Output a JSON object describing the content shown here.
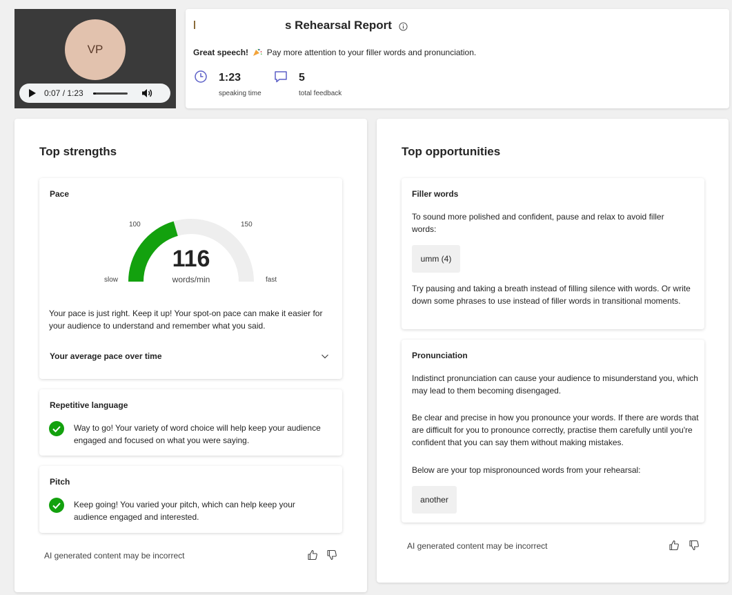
{
  "video": {
    "avatar_initials": "VP",
    "time": "0:07 / 1:23",
    "progress_fraction": 0.085
  },
  "header": {
    "title": "s Rehearsal Report",
    "summary_bold": "Great speech!",
    "summary_rest": "Pay more attention to your filler words and pronunciation.",
    "stats": [
      {
        "icon": "clock-icon",
        "value": "1:23",
        "label": "speaking time"
      },
      {
        "icon": "comment-icon",
        "value": "5",
        "label": "total feedback"
      }
    ]
  },
  "strengths": {
    "title": "Top strengths",
    "pace": {
      "title": "Pace",
      "value": 116,
      "unit": "words/min",
      "range_low": "100",
      "range_high": "150",
      "slow_label": "slow",
      "fast_label": "fast",
      "description": "Your pace is just right. Keep it up! Your spot-on pace can make it easier for your audience to understand and remember what you said.",
      "expander_label": "Your average pace over time",
      "colors": {
        "fill": "#13a10e",
        "track": "#eeeeee"
      }
    },
    "repetitive": {
      "title": "Repetitive language",
      "text": "Way to go! Your variety of word choice will help keep your audience engaged and focused on what you were saying."
    },
    "pitch": {
      "title": "Pitch",
      "text": "Keep going! You varied your pitch, which can help keep your audience engaged and interested."
    },
    "footer": "AI generated content may be incorrect"
  },
  "opportunities": {
    "title": "Top opportunities",
    "filler": {
      "title": "Filler words",
      "intro": "To sound more polished and confident, pause and relax to avoid filler words:",
      "chip": "umm (4)",
      "tip": "Try pausing and taking a breath instead of filling silence with words. Or write down some phrases to use instead of filler words in transitional moments."
    },
    "pronunciation": {
      "title": "Pronunciation",
      "p1": "Indistinct pronunciation can cause your audience to misunderstand you, which may lead to them becoming disengaged.",
      "p2": "Be clear and precise in how you pronounce your words. If there are words that are difficult for you to pronounce correctly, practise them carefully until you're confident that you can say them without making mistakes.",
      "p3": "Below are your top mispronounced words from your rehearsal:",
      "chip": "another"
    },
    "footer": "AI generated content may be incorrect"
  },
  "colors": {
    "success": "#13a10e",
    "accent": "#5b5fc7"
  }
}
